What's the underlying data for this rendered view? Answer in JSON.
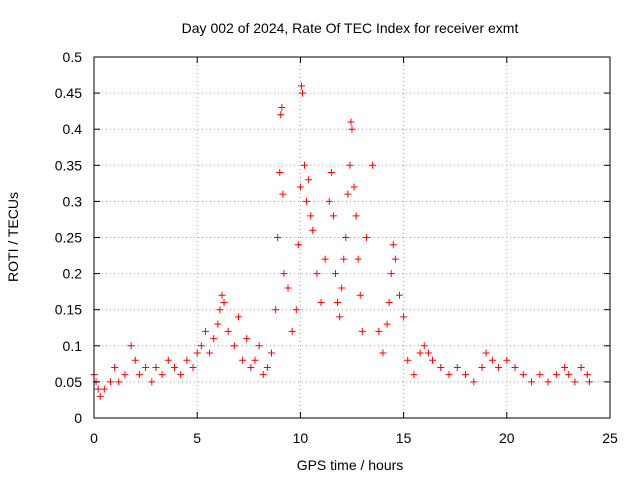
{
  "chart_data": {
    "type": "scatter",
    "title": "Day 002 of 2024, Rate Of TEC Index for receiver exmt",
    "xlabel": "GPS time / hours",
    "ylabel": "ROTI / TECUs",
    "xlim": [
      0,
      25
    ],
    "ylim": [
      0,
      0.5
    ],
    "xticks": [
      0,
      5,
      10,
      15,
      20,
      25
    ],
    "xtick_labels": [
      "0",
      "5",
      "10",
      "15",
      "20",
      "25"
    ],
    "yticks": [
      0,
      0.05,
      0.1,
      0.15,
      0.2,
      0.25,
      0.3,
      0.35,
      0.4,
      0.45,
      0.5
    ],
    "ytick_labels": [
      "0",
      "0.05",
      "0.1",
      "0.15",
      "0.2",
      "0.25",
      "0.3",
      "0.35",
      "0.4",
      "0.45",
      "0.5"
    ],
    "grid": true,
    "marker": "+",
    "color": "#ff0000",
    "series": [
      {
        "name": "ROTI",
        "x": [
          0.0,
          0.1,
          0.2,
          0.3,
          0.5,
          0.8,
          1.0,
          1.2,
          1.5,
          1.8,
          2.0,
          2.2,
          2.5,
          2.8,
          3.0,
          3.3,
          3.6,
          3.9,
          4.2,
          4.5,
          4.8,
          5.0,
          5.2,
          5.4,
          5.6,
          5.8,
          6.0,
          6.1,
          6.2,
          6.3,
          6.5,
          6.8,
          7.0,
          7.2,
          7.4,
          7.6,
          7.8,
          8.0,
          8.2,
          8.4,
          8.6,
          8.8,
          8.9,
          9.0,
          9.05,
          9.1,
          9.15,
          9.2,
          9.4,
          9.6,
          9.8,
          9.9,
          10.0,
          10.05,
          10.1,
          10.2,
          10.3,
          10.4,
          10.5,
          10.6,
          10.8,
          11.0,
          11.2,
          11.4,
          11.5,
          11.6,
          11.7,
          11.8,
          11.9,
          12.0,
          12.1,
          12.2,
          12.3,
          12.4,
          12.45,
          12.5,
          12.6,
          12.7,
          12.8,
          12.9,
          13.0,
          13.2,
          13.5,
          13.8,
          14.0,
          14.2,
          14.3,
          14.4,
          14.5,
          14.6,
          14.8,
          15.0,
          15.2,
          15.5,
          15.8,
          16.0,
          16.2,
          16.4,
          16.8,
          17.2,
          17.6,
          18.0,
          18.4,
          18.8,
          19.0,
          19.3,
          19.6,
          20.0,
          20.4,
          20.8,
          21.2,
          21.6,
          22.0,
          22.4,
          22.8,
          23.0,
          23.3,
          23.6,
          23.9,
          24.0
        ],
        "y": [
          0.06,
          0.05,
          0.04,
          0.03,
          0.04,
          0.05,
          0.07,
          0.05,
          0.06,
          0.1,
          0.08,
          0.06,
          0.07,
          0.05,
          0.07,
          0.06,
          0.08,
          0.07,
          0.06,
          0.08,
          0.07,
          0.09,
          0.1,
          0.12,
          0.09,
          0.11,
          0.13,
          0.15,
          0.17,
          0.16,
          0.12,
          0.1,
          0.14,
          0.08,
          0.11,
          0.07,
          0.08,
          0.1,
          0.06,
          0.07,
          0.09,
          0.15,
          0.25,
          0.34,
          0.42,
          0.43,
          0.31,
          0.2,
          0.18,
          0.12,
          0.15,
          0.24,
          0.32,
          0.46,
          0.45,
          0.35,
          0.3,
          0.33,
          0.28,
          0.26,
          0.2,
          0.16,
          0.22,
          0.3,
          0.34,
          0.28,
          0.2,
          0.16,
          0.14,
          0.18,
          0.22,
          0.25,
          0.31,
          0.35,
          0.41,
          0.4,
          0.32,
          0.28,
          0.22,
          0.17,
          0.12,
          0.25,
          0.35,
          0.12,
          0.09,
          0.13,
          0.16,
          0.2,
          0.24,
          0.22,
          0.17,
          0.14,
          0.08,
          0.06,
          0.09,
          0.1,
          0.09,
          0.08,
          0.07,
          0.06,
          0.07,
          0.06,
          0.05,
          0.07,
          0.09,
          0.08,
          0.07,
          0.08,
          0.07,
          0.06,
          0.05,
          0.06,
          0.05,
          0.06,
          0.07,
          0.06,
          0.05,
          0.07,
          0.06,
          0.05
        ]
      }
    ]
  }
}
